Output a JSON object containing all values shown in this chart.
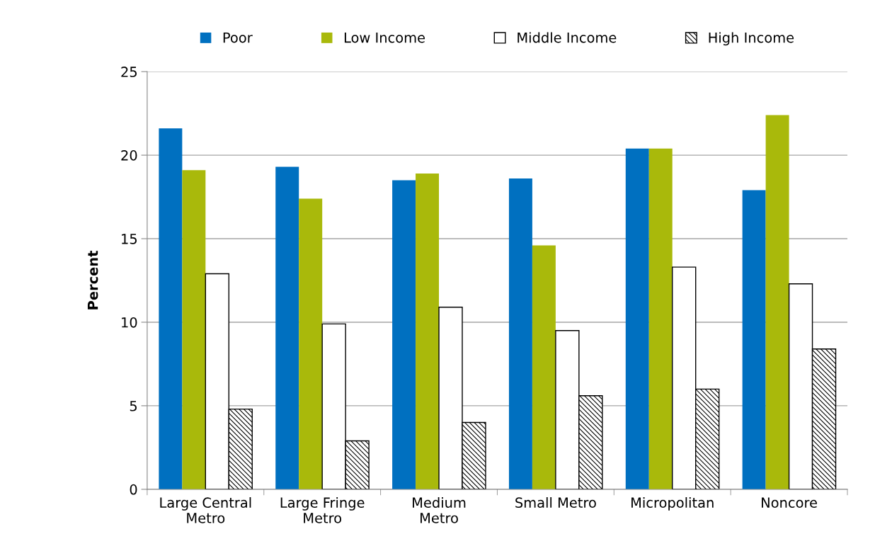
{
  "chart_data": {
    "type": "bar",
    "ylabel": "Percent",
    "categories": [
      "Large Central\nMetro",
      "Large Fringe\nMetro",
      "Medium\nMetro",
      "Small Metro",
      "Micropolitan",
      "Noncore"
    ],
    "series": [
      {
        "name": "Poor",
        "color": "#0070c0",
        "values": [
          21.6,
          19.3,
          18.5,
          18.6,
          20.4,
          17.9
        ]
      },
      {
        "name": "Low Income",
        "color": "#a9b90b",
        "values": [
          19.1,
          17.4,
          18.9,
          14.6,
          20.4,
          22.4
        ]
      },
      {
        "name": "Middle Income",
        "color": "#ffffff",
        "values": [
          12.9,
          9.9,
          10.9,
          9.5,
          13.3,
          12.3
        ]
      },
      {
        "name": "High Income",
        "color": "#000000",
        "values": [
          4.8,
          2.9,
          4.0,
          5.6,
          6.0,
          8.4
        ]
      }
    ],
    "ylim": [
      0,
      25
    ],
    "yticks": [
      0,
      5,
      10,
      15,
      20,
      25
    ],
    "grid": "y",
    "legend": "top"
  }
}
